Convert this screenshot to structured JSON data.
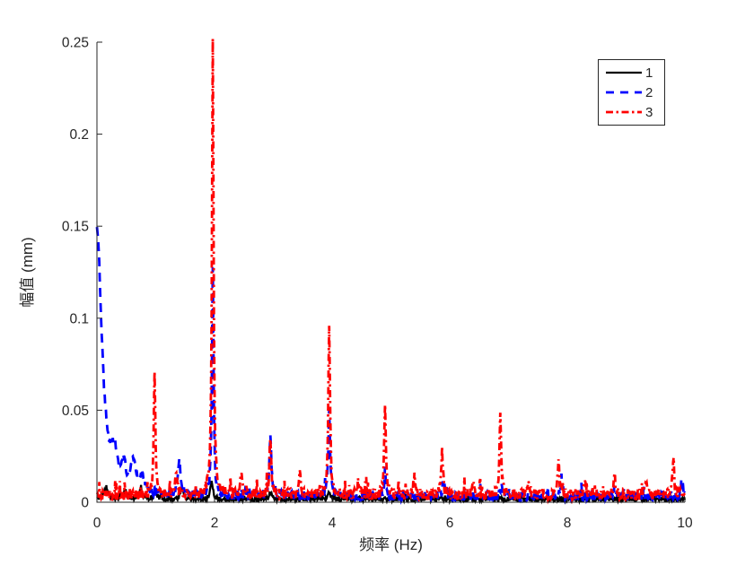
{
  "figure": {
    "background": "#ffffff",
    "axis_color": "#262626",
    "text_color": "#262626"
  },
  "chart_data": {
    "type": "line",
    "title": "",
    "xlabel": "频率 (Hz)",
    "ylabel": "幅值 (mm)",
    "xlim": [
      0,
      10
    ],
    "ylim": [
      0,
      0.25
    ],
    "grid": false,
    "xticks": {
      "values": [
        0,
        2,
        4,
        6,
        8,
        10
      ],
      "labels": [
        "0",
        "2",
        "4",
        "6",
        "8",
        "10"
      ]
    },
    "yticks": {
      "values": [
        0,
        0.05,
        0.1,
        0.15,
        0.2,
        0.25
      ],
      "labels": [
        "0",
        "0.05",
        "0.1",
        "0.15",
        "0.2",
        "0.25"
      ]
    },
    "legend": {
      "position": "top-right",
      "labels": [
        "1",
        "2",
        "3"
      ]
    },
    "sample_step_hz": 0.01,
    "series": [
      {
        "name": "1",
        "color": "#000000",
        "line_style": "solid",
        "line_width": 2.3,
        "noise_floor": 0.0016,
        "seed": 11,
        "peaks": [
          {
            "f": 0.15,
            "a": 0.005,
            "w": 0.05
          },
          {
            "f": 0.45,
            "a": 0.003,
            "w": 0.05
          },
          {
            "f": 0.75,
            "a": 0.004,
            "w": 0.04
          },
          {
            "f": 1.0,
            "a": 0.004,
            "w": 0.03
          },
          {
            "f": 1.45,
            "a": 0.005,
            "w": 0.03
          },
          {
            "f": 1.95,
            "a": 0.0095,
            "w": 0.025
          },
          {
            "f": 2.95,
            "a": 0.0035,
            "w": 0.03
          },
          {
            "f": 3.95,
            "a": 0.004,
            "w": 0.025
          }
        ]
      },
      {
        "name": "2",
        "color": "#0000ff",
        "line_style": "dashed",
        "line_width": 2.8,
        "noise_floor": 0.003,
        "seed": 22,
        "peaks": [
          {
            "f": 0.0,
            "a": 0.145,
            "w": 0.1
          },
          {
            "f": 0.3,
            "a": 0.014,
            "w": 0.06
          },
          {
            "f": 0.45,
            "a": 0.011,
            "w": 0.05
          },
          {
            "f": 0.62,
            "a": 0.015,
            "w": 0.05
          },
          {
            "f": 0.78,
            "a": 0.008,
            "w": 0.05
          },
          {
            "f": 1.4,
            "a": 0.02,
            "w": 0.025
          },
          {
            "f": 1.97,
            "a": 0.125,
            "w": 0.016
          },
          {
            "f": 2.95,
            "a": 0.033,
            "w": 0.02
          },
          {
            "f": 3.95,
            "a": 0.046,
            "w": 0.018
          },
          {
            "f": 4.9,
            "a": 0.01,
            "w": 0.02
          },
          {
            "f": 5.9,
            "a": 0.007,
            "w": 0.02
          },
          {
            "f": 6.88,
            "a": 0.007,
            "w": 0.02
          },
          {
            "f": 7.9,
            "a": 0.007,
            "w": 0.02
          },
          {
            "f": 8.8,
            "a": 0.005,
            "w": 0.02
          },
          {
            "f": 9.95,
            "a": 0.009,
            "w": 0.02
          }
        ]
      },
      {
        "name": "3",
        "color": "#ff0000",
        "line_style": "dashdot",
        "line_width": 2.8,
        "noise_floor": 0.0038,
        "seed": 33,
        "peaks": [
          {
            "f": 0.98,
            "a": 0.067,
            "w": 0.016
          },
          {
            "f": 1.35,
            "a": 0.011,
            "w": 0.02
          },
          {
            "f": 1.97,
            "a": 0.2495,
            "w": 0.016
          },
          {
            "f": 2.45,
            "a": 0.011,
            "w": 0.02
          },
          {
            "f": 2.95,
            "a": 0.032,
            "w": 0.018
          },
          {
            "f": 3.45,
            "a": 0.011,
            "w": 0.02
          },
          {
            "f": 3.95,
            "a": 0.092,
            "w": 0.017
          },
          {
            "f": 4.45,
            "a": 0.008,
            "w": 0.02
          },
          {
            "f": 4.9,
            "a": 0.0495,
            "w": 0.016
          },
          {
            "f": 5.4,
            "a": 0.009,
            "w": 0.02
          },
          {
            "f": 5.87,
            "a": 0.026,
            "w": 0.016
          },
          {
            "f": 6.4,
            "a": 0.008,
            "w": 0.02
          },
          {
            "f": 6.86,
            "a": 0.047,
            "w": 0.016
          },
          {
            "f": 7.35,
            "a": 0.008,
            "w": 0.02
          },
          {
            "f": 7.85,
            "a": 0.02,
            "w": 0.016
          },
          {
            "f": 8.3,
            "a": 0.006,
            "w": 0.02
          },
          {
            "f": 8.8,
            "a": 0.013,
            "w": 0.016
          },
          {
            "f": 9.35,
            "a": 0.007,
            "w": 0.02
          },
          {
            "f": 9.8,
            "a": 0.019,
            "w": 0.016
          }
        ]
      }
    ]
  }
}
